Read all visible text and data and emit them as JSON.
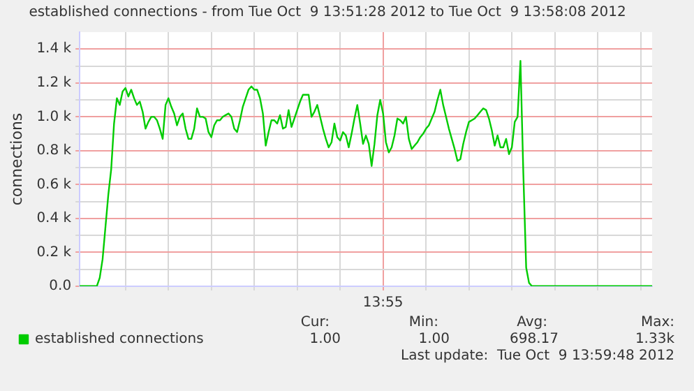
{
  "chart_data": {
    "type": "line",
    "title": "established connections - from Tue Oct  9 13:51:28 2012 to Tue Oct  9 13:58:08 2012",
    "ylabel": "connections",
    "categories": [
      null,
      null,
      null,
      null,
      null,
      null,
      null,
      null,
      null,
      null,
      null,
      null,
      null,
      null,
      null,
      null,
      null,
      null,
      null,
      null,
      null,
      null,
      null,
      null,
      null,
      null,
      null,
      null,
      null,
      null,
      null,
      null,
      null,
      null,
      null,
      null,
      null,
      null,
      null,
      null,
      null,
      null,
      null,
      null,
      null,
      null,
      null,
      null,
      null,
      null,
      null,
      null,
      null,
      null,
      null,
      null,
      null,
      null,
      null,
      null,
      null,
      null,
      null,
      null,
      null,
      null,
      null,
      null,
      null,
      null,
      null,
      null,
      null,
      null,
      null,
      null,
      null,
      null,
      null,
      null,
      null,
      null,
      null,
      null,
      null,
      null,
      null,
      null,
      null,
      null,
      null,
      null,
      null,
      null,
      null,
      null,
      null,
      null,
      null,
      null,
      null,
      null,
      null,
      null,
      null,
      null,
      "13:55",
      null,
      null,
      null,
      null,
      null,
      null,
      null,
      null,
      null,
      null,
      null,
      null,
      null,
      null,
      null,
      null,
      null,
      null,
      null,
      null,
      null,
      null,
      null,
      null,
      null,
      null,
      null,
      null,
      null,
      null,
      null,
      null,
      null,
      null,
      null,
      null,
      null,
      null,
      null,
      null,
      null,
      null,
      null,
      null,
      null,
      null,
      null,
      null,
      null,
      null,
      null,
      null,
      null,
      null,
      null,
      null,
      null,
      null,
      null,
      null,
      null,
      null,
      null,
      null,
      null,
      null,
      null,
      null,
      null,
      null,
      null,
      null,
      null,
      null,
      null,
      null,
      null,
      null,
      null,
      null,
      null,
      null,
      null,
      null,
      null,
      null,
      null,
      null,
      null,
      null,
      null,
      null,
      null,
      null
    ],
    "series": [
      {
        "name": "established connections",
        "color": "#00cc00",
        "values": [
          1,
          1,
          1,
          1,
          1,
          1,
          1,
          50,
          160,
          350,
          540,
          690,
          960,
          1110,
          1070,
          1150,
          1170,
          1120,
          1160,
          1110,
          1070,
          1090,
          1030,
          930,
          970,
          1000,
          1000,
          980,
          930,
          870,
          1070,
          1110,
          1060,
          1020,
          950,
          1000,
          1020,
          930,
          870,
          870,
          930,
          1050,
          1000,
          1000,
          990,
          910,
          880,
          950,
          980,
          980,
          1000,
          1010,
          1020,
          1000,
          930,
          910,
          980,
          1060,
          1110,
          1160,
          1180,
          1160,
          1160,
          1110,
          1020,
          830,
          910,
          980,
          980,
          960,
          1010,
          930,
          940,
          1040,
          940,
          990,
          1040,
          1090,
          1130,
          1130,
          1130,
          1000,
          1030,
          1070,
          1000,
          930,
          870,
          820,
          850,
          960,
          880,
          860,
          910,
          890,
          820,
          900,
          990,
          1070,
          960,
          840,
          890,
          840,
          710,
          840,
          1010,
          1100,
          1020,
          850,
          790,
          820,
          890,
          990,
          980,
          960,
          1000,
          870,
          810,
          830,
          850,
          880,
          900,
          930,
          950,
          990,
          1030,
          1100,
          1160,
          1070,
          1000,
          930,
          870,
          810,
          740,
          750,
          840,
          910,
          970,
          980,
          990,
          1010,
          1030,
          1050,
          1040,
          990,
          920,
          830,
          890,
          820,
          820,
          870,
          780,
          820,
          970,
          1000,
          1330,
          670,
          110,
          20,
          1,
          1,
          1,
          1,
          1,
          1,
          1,
          1,
          1,
          1,
          1,
          1,
          1,
          1,
          1,
          1,
          1,
          1,
          1,
          1,
          1,
          1,
          1,
          1,
          1,
          1,
          1,
          1,
          1,
          1,
          1,
          1,
          1,
          1,
          1,
          1,
          1,
          1,
          1,
          1,
          1,
          1,
          1
        ]
      }
    ],
    "ylim": [
      0,
      1500
    ],
    "yticks": [
      {
        "value": 0,
        "label": "0.0"
      },
      {
        "value": 100,
        "label": null
      },
      {
        "value": 200,
        "label": "0.2 k"
      },
      {
        "value": 300,
        "label": null
      },
      {
        "value": 400,
        "label": "0.4 k"
      },
      {
        "value": 500,
        "label": null
      },
      {
        "value": 600,
        "label": "0.6 k"
      },
      {
        "value": 700,
        "label": null
      },
      {
        "value": 800,
        "label": "0.8 k"
      },
      {
        "value": 900,
        "label": null
      },
      {
        "value": 1000,
        "label": "1.0 k"
      },
      {
        "value": 1100,
        "label": null
      },
      {
        "value": 1200,
        "label": "1.2 k"
      },
      {
        "value": 1300,
        "label": null
      },
      {
        "value": 1400,
        "label": "1.4 k"
      }
    ],
    "grid": true,
    "legend": "bottom",
    "annotations": [
      "Cur:",
      "Min:",
      "Avg:",
      "Max:",
      "1.00",
      "1.00",
      "698.17",
      "1.33k",
      "Last update:  Tue Oct  9 13:59:48 2012"
    ]
  }
}
